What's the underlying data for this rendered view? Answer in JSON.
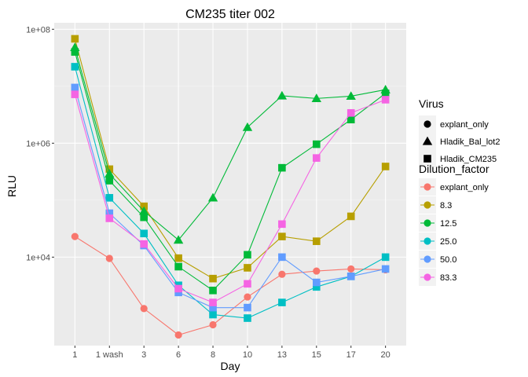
{
  "chart_data": {
    "type": "line",
    "title": "CM235 titer 002",
    "xlabel": "Day",
    "ylabel": "RLU",
    "y_scale": "log10",
    "ylim": [
      280,
      130000000
    ],
    "y_ticks": [
      {
        "value": 10000,
        "label": "1e+04"
      },
      {
        "value": 1000000,
        "label": "1e+06"
      },
      {
        "value": 100000000,
        "label": "1e+08"
      }
    ],
    "categories": [
      "1",
      "1 wash",
      "3",
      "6",
      "8",
      "10",
      "13",
      "15",
      "17",
      "20"
    ],
    "grid": true,
    "legend_position": "right",
    "legend": {
      "virus_title": "Virus",
      "virus_items": [
        {
          "label": "explant_only",
          "shape": "circle"
        },
        {
          "label": "Hladik_Bal_lot2",
          "shape": "triangle"
        },
        {
          "label": "Hladik_CM235",
          "shape": "square"
        }
      ],
      "dilution_title": "Dilution_factor",
      "dilution_items": [
        "explant_only",
        "8.3",
        "12.5",
        "25.0",
        "50.0",
        "83.3"
      ]
    },
    "series": [
      {
        "name": "explant_only",
        "virus": "explant_only",
        "shape": "circle",
        "color": "#F8766D",
        "values": [
          23000,
          9500,
          1250,
          430,
          650,
          2000,
          5000,
          5700,
          6200,
          6000
        ]
      },
      {
        "name": "8.3",
        "virus": "Hladik_CM235",
        "shape": "square",
        "color": "#B79F00",
        "values": [
          68000000,
          350000,
          78000,
          9600,
          4200,
          6500,
          23000,
          19000,
          52000,
          390000
        ]
      },
      {
        "name": "12.5",
        "virus": "Hladik_Bal_lot2",
        "shape": "triangle",
        "color": "#00BA38",
        "values": [
          48000000,
          290000,
          64000,
          20000,
          110000,
          1900000,
          6800000,
          6100000,
          6700000,
          8700000
        ]
      },
      {
        "name": "12.5",
        "virus": "Hladik_CM235",
        "shape": "square",
        "color": "#00BA38",
        "values": [
          40000000,
          220000,
          50000,
          6800,
          2600,
          11000,
          370000,
          960000,
          2600000,
          7500000
        ]
      },
      {
        "name": "25.0",
        "virus": "Hladik_CM235",
        "shape": "square",
        "color": "#00BFC4",
        "values": [
          22000000,
          110000,
          26000,
          3200,
          980,
          850,
          1600,
          3000,
          4600,
          10000
        ]
      },
      {
        "name": "50.0",
        "virus": "Hladik_CM235",
        "shape": "square",
        "color": "#619CFF",
        "values": [
          9500000,
          59000,
          16000,
          2400,
          1300,
          1300,
          10000,
          3600,
          4600,
          6200
        ]
      },
      {
        "name": "83.3",
        "virus": "Hladik_CM235",
        "shape": "square",
        "color": "#F564E3",
        "values": [
          7200000,
          48000,
          17000,
          2800,
          1600,
          3400,
          38000,
          550000,
          3400000,
          5800000
        ]
      }
    ]
  }
}
